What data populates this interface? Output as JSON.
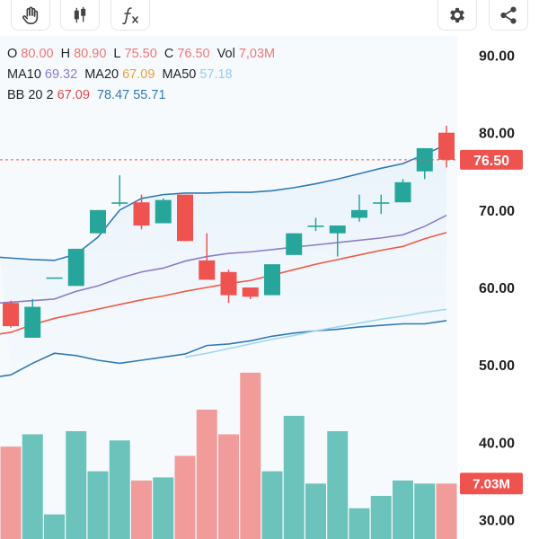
{
  "toolbar": {
    "left_icons": [
      "hand-icon",
      "candlestick-icon",
      "function-icon"
    ],
    "right_icons": [
      "gear-icon",
      "share-icon"
    ]
  },
  "legend": {
    "ohlc": {
      "o_label": "O",
      "o_value": "80.00",
      "h_label": "H",
      "h_value": "80.90",
      "l_label": "L",
      "l_value": "75.50",
      "c_label": "C",
      "c_value": "76.50",
      "vol_label": "Vol",
      "vol_value": "7,03M"
    },
    "ma": {
      "ma10_label": "MA10",
      "ma10_value": "69.32",
      "ma20_label": "MA20",
      "ma20_value": "67.09",
      "ma50_label": "MA50",
      "ma50_value": "57.18"
    },
    "bb": {
      "label": "BB 20 2",
      "v1": "67.09",
      "v2": "78.47",
      "v3": "55.71"
    }
  },
  "price_badge": "76.50",
  "volume_badge": "7.03M",
  "colors": {
    "up": "#26a69a",
    "down": "#ef5350",
    "up_vol": "#6cc3bb",
    "down_vol": "#f29b9b",
    "bb_band": "#2f7ab5",
    "ma10": "#8d7cc7",
    "ma20": "#ef5a43",
    "ma50": "#9fd6f0"
  },
  "chart_data": {
    "type": "candlestick",
    "y_ticks": [
      "90.00",
      "80.00",
      "70.00",
      "60.00",
      "50.00",
      "40.00",
      "30.00"
    ],
    "ylim": [
      27.5,
      92.5
    ],
    "last_price": 76.5,
    "candles": [
      {
        "o": 58.0,
        "h": 58.3,
        "l": 54.8,
        "c": 55.0
      },
      {
        "o": 53.5,
        "h": 58.5,
        "l": 53.5,
        "c": 57.5
      },
      {
        "o": 61.3,
        "h": 61.3,
        "l": 61.3,
        "c": 61.3
      },
      {
        "o": 60.2,
        "h": 65.0,
        "l": 60.2,
        "c": 65.0
      },
      {
        "o": 67.0,
        "h": 70.0,
        "l": 67.0,
        "c": 70.0
      },
      {
        "o": 71.0,
        "h": 74.5,
        "l": 70.5,
        "c": 71.0
      },
      {
        "o": 71.0,
        "h": 72.0,
        "l": 67.5,
        "c": 68.0
      },
      {
        "o": 68.3,
        "h": 71.5,
        "l": 68.3,
        "c": 71.3
      },
      {
        "o": 72.0,
        "h": 72.0,
        "l": 66.0,
        "c": 66.0
      },
      {
        "o": 63.5,
        "h": 67.0,
        "l": 61.0,
        "c": 61.0
      },
      {
        "o": 62.0,
        "h": 62.3,
        "l": 58.0,
        "c": 59.0
      },
      {
        "o": 60.0,
        "h": 60.0,
        "l": 58.5,
        "c": 58.8
      },
      {
        "o": 59.0,
        "h": 63.0,
        "l": 59.0,
        "c": 63.0
      },
      {
        "o": 64.2,
        "h": 67.0,
        "l": 64.2,
        "c": 67.0
      },
      {
        "o": 68.0,
        "h": 69.0,
        "l": 67.3,
        "c": 68.0
      },
      {
        "o": 67.0,
        "h": 68.0,
        "l": 64.0,
        "c": 68.0
      },
      {
        "o": 69.0,
        "h": 72.0,
        "l": 68.5,
        "c": 70.0
      },
      {
        "o": 71.0,
        "h": 72.0,
        "l": 69.5,
        "c": 71.0
      },
      {
        "o": 71.0,
        "h": 74.0,
        "l": 71.0,
        "c": 73.6
      },
      {
        "o": 75.0,
        "h": 78.0,
        "l": 74.0,
        "c": 78.0
      },
      {
        "o": 80.0,
        "h": 80.9,
        "l": 75.5,
        "c": 76.5
      }
    ],
    "volume": {
      "ylim": [
        0,
        35
      ],
      "values": [
        15,
        17,
        4,
        17.5,
        11,
        16,
        9.5,
        10,
        13.5,
        21,
        17,
        27,
        11,
        20,
        9,
        17.5,
        5,
        7,
        9.5,
        9,
        9
      ]
    },
    "bb_upper": [
      63.8,
      63.6,
      63.5,
      64.3,
      66.5,
      70.0,
      71.5,
      72.0,
      72.2,
      72.2,
      72.3,
      72.3,
      72.5,
      72.9,
      73.4,
      74.0,
      74.7,
      75.4,
      76.0,
      77.2,
      78.47
    ],
    "bb_lower": [
      48.7,
      50.2,
      51.5,
      51.2,
      50.6,
      50.2,
      50.6,
      51.0,
      51.4,
      52.5,
      52.7,
      53.1,
      53.7,
      54.1,
      54.4,
      54.6,
      54.9,
      55.1,
      55.3,
      55.3,
      55.71
    ],
    "ma10": [
      null,
      null,
      58.5,
      59.5,
      60.2,
      61.2,
      62.0,
      62.5,
      63.4,
      64.0,
      64.4,
      64.6,
      64.9,
      65.2,
      65.5,
      65.8,
      66.1,
      66.4,
      66.8,
      67.9,
      69.32
    ],
    "ma20": [
      54.2,
      55.2,
      56.0,
      56.6,
      57.2,
      57.8,
      58.4,
      58.9,
      59.5,
      60.0,
      60.5,
      60.9,
      61.6,
      62.3,
      63.0,
      63.6,
      64.2,
      64.8,
      65.3,
      66.3,
      67.09
    ],
    "ma50": [
      null,
      null,
      null,
      null,
      null,
      null,
      null,
      null,
      51.0,
      51.5,
      52.1,
      52.7,
      53.3,
      53.8,
      54.4,
      54.9,
      55.4,
      55.9,
      56.3,
      56.8,
      57.18
    ]
  }
}
